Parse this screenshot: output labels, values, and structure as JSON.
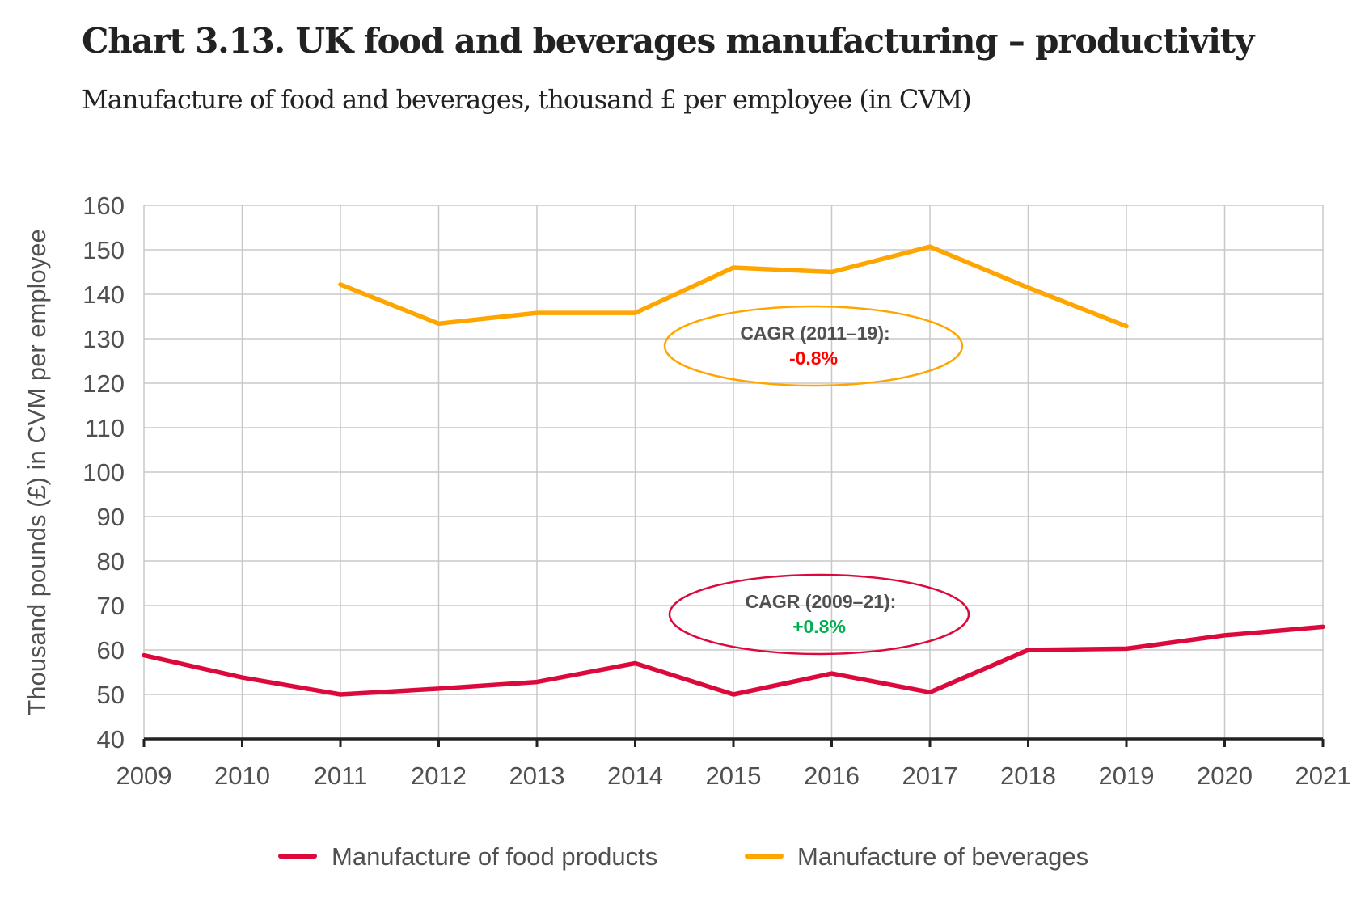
{
  "header": {
    "title": "Chart 3.13. UK food and beverages manufacturing – productivity",
    "subtitle": "Manufacture of food and beverages, thousand £ per employee (in CVM)"
  },
  "chart_data": {
    "type": "line",
    "title": "Chart 3.13. UK food and beverages manufacturing – productivity",
    "subtitle": "Manufacture of food and beverages, thousand £ per employee (in CVM)",
    "xlabel": "",
    "ylabel": "Thousand pounds (£) in CVM per employee",
    "x": [
      "2009",
      "2010",
      "2011",
      "2012",
      "2013",
      "2014",
      "2015",
      "2016",
      "2017",
      "2018",
      "2019",
      "2020",
      "2021"
    ],
    "ylim": [
      40,
      160
    ],
    "yticks": [
      40,
      50,
      60,
      70,
      80,
      90,
      100,
      110,
      120,
      130,
      140,
      150,
      160
    ],
    "grid": true,
    "legend_position": "bottom-center",
    "series": [
      {
        "name": "Manufacture of food products",
        "color": "#dc0a3c",
        "values": [
          58.8,
          53.8,
          50.0,
          51.3,
          52.8,
          57.0,
          50.0,
          54.7,
          50.5,
          60.0,
          60.3,
          63.3,
          65.2
        ]
      },
      {
        "name": "Manufacture of beverages",
        "color": "#ffa500",
        "values": [
          null,
          null,
          142.2,
          133.4,
          135.8,
          135.8,
          146.0,
          145.0,
          150.7,
          141.5,
          132.8,
          null,
          null
        ]
      }
    ],
    "annotations": [
      {
        "series": "Manufacture of beverages",
        "label": "CAGR (2011–19):",
        "value": "-0.8%",
        "value_color": "#ff0000",
        "border_color": "#ffa500",
        "anchor_x": "2015.6",
        "anchor_y": 128
      },
      {
        "series": "Manufacture of food products",
        "label": "CAGR (2009–21):",
        "value": "+0.8%",
        "value_color": "#00b050",
        "border_color": "#dc0a3c",
        "anchor_x": "2015.7",
        "anchor_y": 68
      }
    ]
  }
}
